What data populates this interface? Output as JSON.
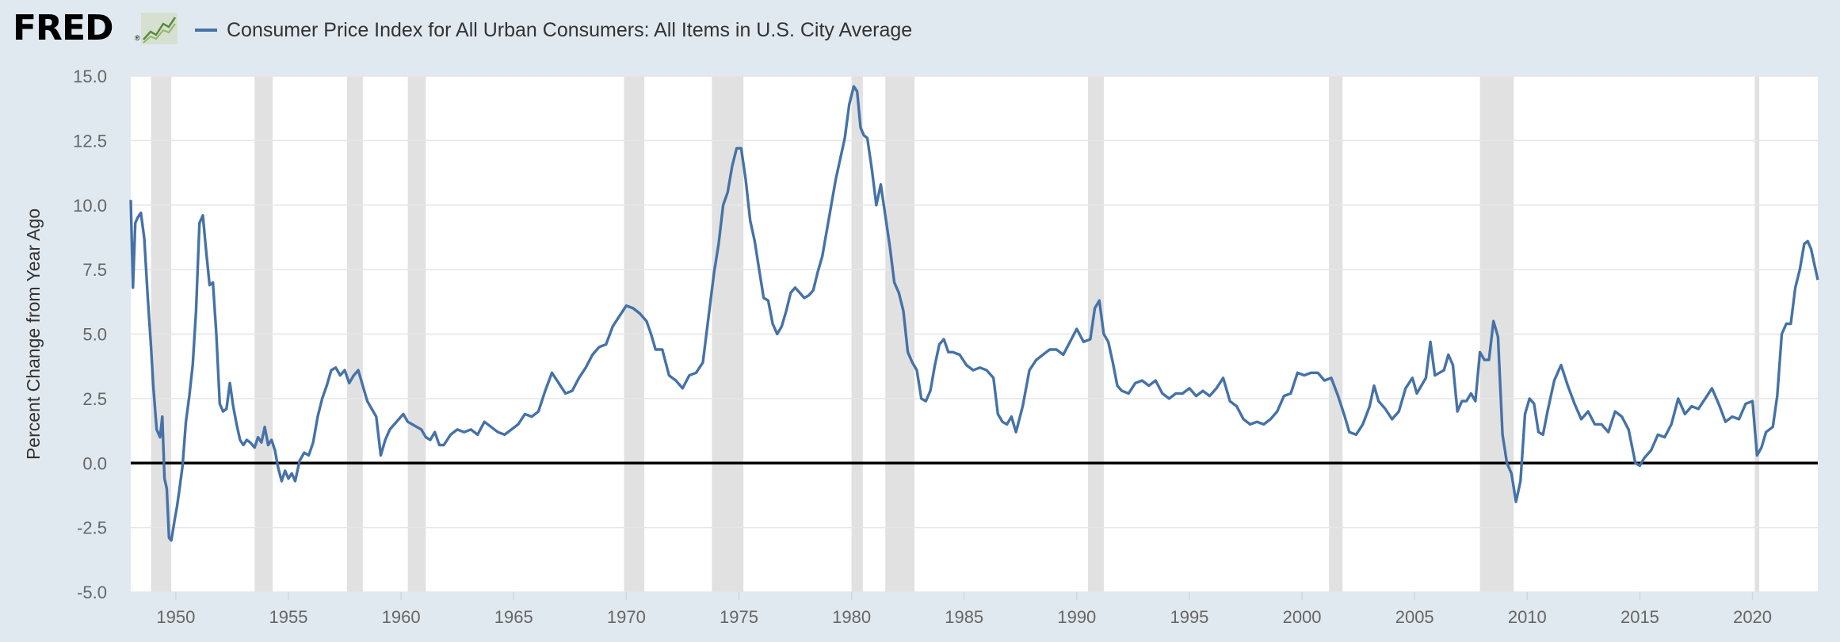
{
  "header": {
    "logo_text": "FRED",
    "logo_mark": "®",
    "logo_icon": "line-chart-icon",
    "series_title": "Consumer Price Index for All Urban Consumers: All Items in U.S. City Average"
  },
  "colors": {
    "series": "#4572a7",
    "recession": "#e1e1e1",
    "zero_line": "#000000",
    "grid": "#e6e6e6",
    "background": "#e1e9f0",
    "plot": "#ffffff"
  },
  "chart_data": {
    "type": "line",
    "title": "Consumer Price Index for All Urban Consumers: All Items in U.S. City Average",
    "xlabel": "",
    "ylabel": "Percent Change from Year Ago",
    "xlim": [
      1948.0,
      2022.9
    ],
    "ylim": [
      -5.0,
      15.0
    ],
    "yticks": [
      15.0,
      12.5,
      10.0,
      7.5,
      5.0,
      2.5,
      0.0,
      -2.5,
      -5.0
    ],
    "ytick_labels": [
      "15.0",
      "12.5",
      "10.0",
      "7.5",
      "5.0",
      "2.5",
      "0.0",
      "-2.5",
      "-5.0"
    ],
    "xticks": [
      1950,
      1955,
      1960,
      1965,
      1970,
      1975,
      1980,
      1985,
      1990,
      1995,
      2000,
      2005,
      2010,
      2015,
      2020
    ],
    "xtick_labels": [
      "1950",
      "1955",
      "1960",
      "1965",
      "1970",
      "1975",
      "1980",
      "1985",
      "1990",
      "1995",
      "2000",
      "2005",
      "2010",
      "2015",
      "2020"
    ],
    "zero_line": 0.0,
    "recessions": [
      [
        1948.9,
        1949.8
      ],
      [
        1953.5,
        1954.3
      ],
      [
        1957.6,
        1958.3
      ],
      [
        1960.3,
        1961.1
      ],
      [
        1969.9,
        1970.8
      ],
      [
        1973.8,
        1975.2
      ],
      [
        1980.0,
        1980.5
      ],
      [
        1981.5,
        1982.8
      ],
      [
        1990.5,
        1991.2
      ],
      [
        2001.2,
        2001.8
      ],
      [
        2007.9,
        2009.4
      ],
      [
        2020.1,
        2020.3
      ]
    ],
    "series": [
      {
        "name": "Consumer Price Index for All Urban Consumers: All Items in U.S. City Average",
        "x": [
          1948.0,
          1948.1,
          1948.2,
          1948.3,
          1948.45,
          1948.6,
          1948.75,
          1948.9,
          1949.0,
          1949.15,
          1949.3,
          1949.4,
          1949.5,
          1949.6,
          1949.7,
          1949.8,
          1949.95,
          1950.05,
          1950.15,
          1950.3,
          1950.45,
          1950.6,
          1950.75,
          1950.9,
          1951.05,
          1951.2,
          1951.35,
          1951.5,
          1951.65,
          1951.8,
          1951.95,
          1952.1,
          1952.25,
          1952.4,
          1952.55,
          1952.7,
          1952.85,
          1953.0,
          1953.15,
          1953.3,
          1953.5,
          1953.65,
          1953.8,
          1953.95,
          1954.1,
          1954.25,
          1954.4,
          1954.55,
          1954.7,
          1954.85,
          1955.0,
          1955.15,
          1955.3,
          1955.5,
          1955.7,
          1955.9,
          1956.1,
          1956.3,
          1956.5,
          1956.7,
          1956.9,
          1957.1,
          1957.3,
          1957.5,
          1957.7,
          1957.9,
          1958.1,
          1958.3,
          1958.5,
          1958.7,
          1958.9,
          1959.1,
          1959.3,
          1959.5,
          1959.7,
          1959.9,
          1960.1,
          1960.3,
          1960.5,
          1960.7,
          1960.9,
          1961.1,
          1961.3,
          1961.5,
          1961.7,
          1961.9,
          1962.2,
          1962.5,
          1962.8,
          1963.1,
          1963.4,
          1963.7,
          1964.0,
          1964.3,
          1964.6,
          1964.9,
          1965.2,
          1965.5,
          1965.8,
          1966.1,
          1966.4,
          1966.7,
          1967.0,
          1967.3,
          1967.6,
          1967.9,
          1968.2,
          1968.5,
          1968.8,
          1969.1,
          1969.4,
          1969.7,
          1970.0,
          1970.3,
          1970.6,
          1970.9,
          1971.1,
          1971.3,
          1971.6,
          1971.9,
          1972.2,
          1972.5,
          1972.8,
          1973.1,
          1973.4,
          1973.7,
          1973.9,
          1974.1,
          1974.3,
          1974.5,
          1974.7,
          1974.9,
          1975.1,
          1975.3,
          1975.5,
          1975.7,
          1975.9,
          1976.1,
          1976.3,
          1976.5,
          1976.7,
          1976.9,
          1977.1,
          1977.3,
          1977.5,
          1977.7,
          1977.9,
          1978.1,
          1978.3,
          1978.5,
          1978.7,
          1978.9,
          1979.1,
          1979.3,
          1979.5,
          1979.7,
          1979.9,
          1980.1,
          1980.25,
          1980.4,
          1980.55,
          1980.7,
          1980.9,
          1981.1,
          1981.3,
          1981.5,
          1981.7,
          1981.9,
          1982.1,
          1982.3,
          1982.5,
          1982.7,
          1982.9,
          1983.1,
          1983.3,
          1983.5,
          1983.7,
          1983.9,
          1984.1,
          1984.3,
          1984.5,
          1984.8,
          1985.1,
          1985.4,
          1985.7,
          1986.0,
          1986.3,
          1986.5,
          1986.7,
          1986.9,
          1987.1,
          1987.3,
          1987.6,
          1987.9,
          1988.2,
          1988.5,
          1988.8,
          1989.1,
          1989.4,
          1989.7,
          1990.0,
          1990.3,
          1990.6,
          1990.8,
          1991.0,
          1991.2,
          1991.4,
          1991.6,
          1991.8,
          1992.0,
          1992.3,
          1992.6,
          1992.9,
          1993.2,
          1993.5,
          1993.8,
          1994.1,
          1994.4,
          1994.7,
          1995.0,
          1995.3,
          1995.6,
          1995.9,
          1996.2,
          1996.5,
          1996.8,
          1997.1,
          1997.4,
          1997.7,
          1998.0,
          1998.3,
          1998.6,
          1998.9,
          1999.2,
          1999.5,
          1999.8,
          2000.1,
          2000.4,
          2000.7,
          2001.0,
          2001.3,
          2001.6,
          2001.9,
          2002.1,
          2002.4,
          2002.7,
          2003.0,
          2003.2,
          2003.4,
          2003.7,
          2004.0,
          2004.3,
          2004.6,
          2004.9,
          2005.1,
          2005.3,
          2005.5,
          2005.7,
          2005.9,
          2006.1,
          2006.3,
          2006.5,
          2006.7,
          2006.9,
          2007.1,
          2007.3,
          2007.5,
          2007.7,
          2007.9,
          2008.1,
          2008.3,
          2008.5,
          2008.7,
          2008.9,
          2009.1,
          2009.3,
          2009.5,
          2009.7,
          2009.9,
          2010.1,
          2010.3,
          2010.5,
          2010.7,
          2010.9,
          2011.2,
          2011.5,
          2011.8,
          2012.1,
          2012.4,
          2012.7,
          2013.0,
          2013.3,
          2013.6,
          2013.9,
          2014.2,
          2014.5,
          2014.8,
          2015.0,
          2015.2,
          2015.5,
          2015.8,
          2016.1,
          2016.4,
          2016.7,
          2017.0,
          2017.3,
          2017.6,
          2017.9,
          2018.2,
          2018.5,
          2018.8,
          2019.1,
          2019.4,
          2019.7,
          2020.0,
          2020.2,
          2020.4,
          2020.6,
          2020.9,
          2021.1,
          2021.3,
          2021.5,
          2021.7,
          2021.9,
          2022.1,
          2022.3,
          2022.45,
          2022.6,
          2022.75,
          2022.9
        ],
        "values": [
          10.2,
          6.8,
          9.3,
          9.5,
          9.7,
          8.7,
          6.5,
          4.5,
          3.0,
          1.3,
          1.0,
          1.8,
          -0.6,
          -1.0,
          -2.9,
          -3.0,
          -2.2,
          -1.7,
          -1.1,
          -0.1,
          1.6,
          2.6,
          3.8,
          5.9,
          9.3,
          9.6,
          8.2,
          6.9,
          7.0,
          5.0,
          2.3,
          2.0,
          2.1,
          3.1,
          2.2,
          1.5,
          0.9,
          0.7,
          0.9,
          0.8,
          0.6,
          1.0,
          0.8,
          1.4,
          0.7,
          0.9,
          0.5,
          -0.2,
          -0.7,
          -0.3,
          -0.6,
          -0.4,
          -0.7,
          0.1,
          0.4,
          0.3,
          0.8,
          1.8,
          2.5,
          3.0,
          3.6,
          3.7,
          3.4,
          3.6,
          3.1,
          3.4,
          3.6,
          3.0,
          2.4,
          2.1,
          1.8,
          0.3,
          0.9,
          1.3,
          1.5,
          1.7,
          1.9,
          1.6,
          1.5,
          1.4,
          1.3,
          1.0,
          0.9,
          1.2,
          0.7,
          0.7,
          1.1,
          1.3,
          1.2,
          1.3,
          1.1,
          1.6,
          1.4,
          1.2,
          1.1,
          1.3,
          1.5,
          1.9,
          1.8,
          2.0,
          2.8,
          3.5,
          3.1,
          2.7,
          2.8,
          3.3,
          3.7,
          4.2,
          4.5,
          4.6,
          5.3,
          5.7,
          6.1,
          6.0,
          5.8,
          5.5,
          5.0,
          4.4,
          4.4,
          3.4,
          3.2,
          2.9,
          3.4,
          3.5,
          3.9,
          6.0,
          7.4,
          8.5,
          10.0,
          10.5,
          11.5,
          12.2,
          12.2,
          11.0,
          9.4,
          8.6,
          7.5,
          6.4,
          6.3,
          5.4,
          5.0,
          5.3,
          5.9,
          6.6,
          6.8,
          6.6,
          6.4,
          6.5,
          6.7,
          7.4,
          8.0,
          9.0,
          10.0,
          11.0,
          11.8,
          12.6,
          13.9,
          14.6,
          14.4,
          13.0,
          12.7,
          12.6,
          11.4,
          10.0,
          10.8,
          9.6,
          8.4,
          7.0,
          6.6,
          5.9,
          4.3,
          3.9,
          3.6,
          2.5,
          2.4,
          2.8,
          3.8,
          4.6,
          4.8,
          4.3,
          4.3,
          4.2,
          3.8,
          3.6,
          3.7,
          3.6,
          3.3,
          1.9,
          1.6,
          1.5,
          1.8,
          1.2,
          2.2,
          3.6,
          4.0,
          4.2,
          4.4,
          4.4,
          4.2,
          4.7,
          5.2,
          4.7,
          4.8,
          6.0,
          6.3,
          5.0,
          4.7,
          3.9,
          3.0,
          2.8,
          2.7,
          3.1,
          3.2,
          3.0,
          3.2,
          2.7,
          2.5,
          2.7,
          2.7,
          2.9,
          2.6,
          2.8,
          2.6,
          2.9,
          3.3,
          2.4,
          2.2,
          1.7,
          1.5,
          1.6,
          1.5,
          1.7,
          2.0,
          2.6,
          2.7,
          3.5,
          3.4,
          3.5,
          3.5,
          3.2,
          3.3,
          2.6,
          1.8,
          1.2,
          1.1,
          1.5,
          2.2,
          3.0,
          2.4,
          2.1,
          1.7,
          2.0,
          2.9,
          3.3,
          2.7,
          3.0,
          3.3,
          4.7,
          3.4,
          3.5,
          3.6,
          4.2,
          3.8,
          2.0,
          2.4,
          2.4,
          2.7,
          2.4,
          4.3,
          4.0,
          4.0,
          5.5,
          4.9,
          1.1,
          0.0,
          -0.4,
          -1.5,
          -0.7,
          1.9,
          2.5,
          2.3,
          1.2,
          1.1,
          2.0,
          3.2,
          3.8,
          3.0,
          2.3,
          1.7,
          2.0,
          1.5,
          1.5,
          1.2,
          2.0,
          1.8,
          1.3,
          0.0,
          -0.1,
          0.2,
          0.5,
          1.1,
          1.0,
          1.5,
          2.5,
          1.9,
          2.2,
          2.1,
          2.5,
          2.9,
          2.3,
          1.6,
          1.8,
          1.7,
          2.3,
          2.4,
          0.3,
          0.6,
          1.2,
          1.4,
          2.6,
          5.0,
          5.4,
          5.4,
          6.8,
          7.5,
          8.5,
          8.6,
          8.3,
          7.7,
          7.1
        ]
      }
    ]
  }
}
